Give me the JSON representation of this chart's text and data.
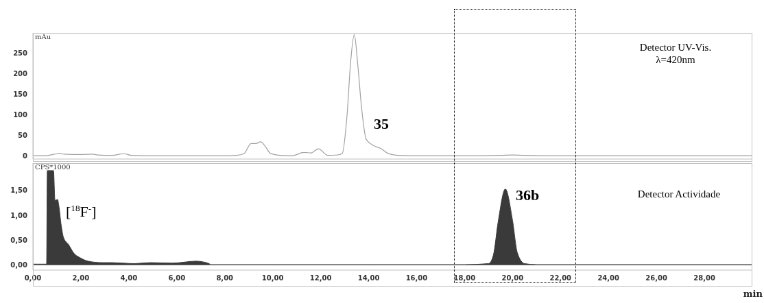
{
  "chart_data": [
    {
      "type": "line",
      "ylabel": "mAu",
      "xlim": [
        0,
        30
      ],
      "tick_labels": "y",
      "ylim": [
        -8,
        300
      ],
      "yticks": [
        0,
        50,
        100,
        150,
        200,
        250
      ],
      "series": [
        {
          "color": "#a0a0a0",
          "x": [
            0,
            0.5,
            1.0,
            1.1,
            1.3,
            2.0,
            2.5,
            2.7,
            3.3,
            3.8,
            4.1,
            5,
            6,
            7,
            8,
            8.5,
            8.8,
            9.1,
            9.3,
            9.5,
            9.7,
            9.9,
            10.3,
            10.8,
            11.3,
            11.6,
            11.9,
            12.3,
            12.7,
            12.9,
            13.1,
            13.25,
            13.4,
            13.55,
            13.7,
            13.9,
            14.2,
            14.5,
            14.8,
            15.2,
            16,
            18,
            19.5,
            20,
            20.5,
            22,
            25,
            28,
            30
          ],
          "values": [
            0,
            0,
            5,
            6,
            4,
            3,
            4,
            2,
            1,
            5,
            1,
            0,
            0,
            0,
            0,
            1,
            5,
            30,
            30,
            34,
            22,
            6,
            1,
            0,
            8,
            7,
            17,
            1,
            2,
            6,
            100,
            230,
            296,
            220,
            120,
            40,
            25,
            18,
            6,
            1,
            0,
            0,
            1,
            2,
            1,
            0,
            0,
            0,
            0
          ]
        }
      ],
      "annotations": [
        "35",
        "Detector UV-Vis.\nλ=420nm"
      ]
    },
    {
      "type": "area",
      "ylabel": "CPS*1000",
      "xlabel": "min",
      "xlim": [
        0,
        30
      ],
      "xticks": [
        {
          "value": 0,
          "label": "0,00"
        },
        {
          "value": 2,
          "label": "2,00"
        },
        {
          "value": 4,
          "label": "4,00"
        },
        {
          "value": 6,
          "label": "6,00"
        },
        {
          "value": 8,
          "label": "8,00"
        },
        {
          "value": 10,
          "label": "10,00"
        },
        {
          "value": 12,
          "label": "12,00"
        },
        {
          "value": 14,
          "label": "14,00"
        },
        {
          "value": 16,
          "label": "16,00"
        },
        {
          "value": 18,
          "label": "18,00"
        },
        {
          "value": 20,
          "label": "20,00"
        },
        {
          "value": 22,
          "label": "22,00"
        },
        {
          "value": 24,
          "label": "24,00"
        },
        {
          "value": 26,
          "label": "26,00"
        },
        {
          "value": 28,
          "label": "28,00"
        }
      ],
      "ylim": [
        -0.1,
        2.05
      ],
      "yticks": [
        {
          "value": 0,
          "label": "0,00"
        },
        {
          "value": 0.5,
          "label": "0,50"
        },
        {
          "value": 1,
          "label": "1,00"
        },
        {
          "value": 1.5,
          "label": "1,50"
        }
      ],
      "series": [
        {
          "color": "#3a3a3a",
          "x": [
            0,
            0.5,
            0.57,
            0.6,
            0.63,
            0.86,
            0.92,
            1.03,
            1.08,
            1.18,
            1.28,
            1.49,
            1.69,
            2.0,
            2.3,
            2.9,
            3.3,
            4.2,
            4.9,
            5.8,
            6.8,
            7.35,
            7.4,
            10,
            14,
            18,
            19.0,
            19.2,
            19.4,
            19.7,
            20.0,
            20.2,
            20.5,
            21,
            24,
            28,
            30
          ],
          "values": [
            0.02,
            0.02,
            0.02,
            1.9,
            1.9,
            1.9,
            1.3,
            1.32,
            1.2,
            0.8,
            0.55,
            0.41,
            0.25,
            0.14,
            0.08,
            0.05,
            0.05,
            0.03,
            0.05,
            0.04,
            0.08,
            0.03,
            0.01,
            0.01,
            0.01,
            0.01,
            0.03,
            0.2,
            0.87,
            1.53,
            0.9,
            0.25,
            0.03,
            0.01,
            0.01,
            0.01,
            0.01
          ]
        }
      ],
      "annotations": [
        "[$^{18}$F$^{-}$]",
        "36b",
        "Detector Actividade"
      ]
    }
  ]
}
